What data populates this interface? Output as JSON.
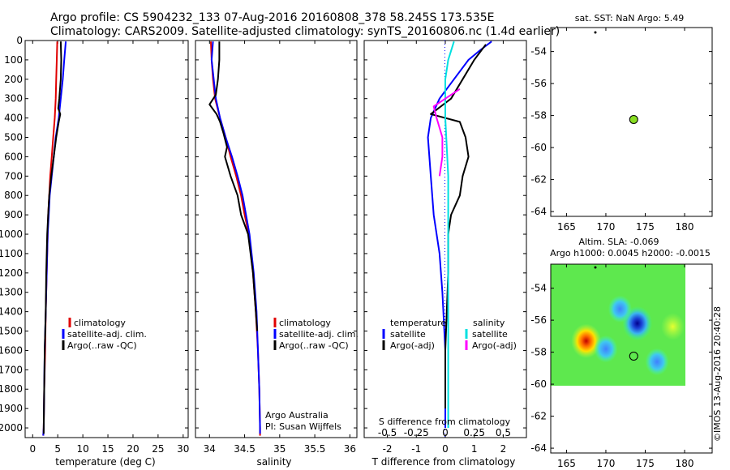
{
  "header": {
    "title_line1": "Argo profile: CS 5904232_133 07-Aug-2016 20160808_378 58.245S 173.535E",
    "title_line2": "Climatology: CARS2009. Satellite-adjusted climatology: synTS_20160806.nc (1.4d earlier)"
  },
  "colors": {
    "climatology": "#e00000",
    "satellite": "#0000ff",
    "argo": "#000000",
    "sat_salinity": "#00e0e0",
    "argo_salinity": "#ff00ff",
    "marker": "#88dd22"
  },
  "legend": {
    "climatology": "climatology",
    "satellite_adj": "satellite-adj. clim.",
    "argo_raw": "Argo(..raw -QC)",
    "temperature": "temperature",
    "salinity": "salinity",
    "satellite": "satellite",
    "argo_adj": "Argo(-adj)"
  },
  "credits": {
    "line1": "Argo Australia",
    "line2": "PI: Susan Wijffels",
    "timestamp": "©IMOS 13-Aug-2016 20:40:28"
  },
  "chart_data": [
    {
      "id": "temperature",
      "type": "line",
      "xlabel": "temperature (deg C)",
      "xlim": [
        -1.5,
        31
      ],
      "xticks": [
        0,
        5,
        10,
        15,
        20,
        25,
        30
      ],
      "ylim": [
        0,
        2050
      ],
      "yticks": [
        0,
        100,
        200,
        300,
        400,
        500,
        600,
        700,
        800,
        900,
        1000,
        1100,
        1200,
        1300,
        1400,
        1500,
        1600,
        1700,
        1800,
        1900,
        2000
      ],
      "series": [
        {
          "name": "climatology",
          "color": "#e00000",
          "points": [
            [
              4.9,
              5
            ],
            [
              4.8,
              100
            ],
            [
              4.7,
              200
            ],
            [
              4.6,
              300
            ],
            [
              4.4,
              400
            ],
            [
              4.1,
              500
            ],
            [
              3.8,
              600
            ],
            [
              3.5,
              700
            ],
            [
              3.3,
              800
            ],
            [
              3.1,
              900
            ],
            [
              3.0,
              1000
            ],
            [
              2.8,
              1200
            ],
            [
              2.6,
              1400
            ],
            [
              2.5,
              1600
            ],
            [
              2.3,
              1800
            ],
            [
              2.2,
              2000
            ],
            [
              2.1,
              2040
            ]
          ]
        },
        {
          "name": "satellite-adj. clim.",
          "color": "#0000ff",
          "points": [
            [
              6.6,
              5
            ],
            [
              6.3,
              100
            ],
            [
              6.0,
              200
            ],
            [
              5.6,
              300
            ],
            [
              5.2,
              400
            ],
            [
              4.6,
              500
            ],
            [
              4.2,
              600
            ],
            [
              3.8,
              700
            ],
            [
              3.4,
              800
            ],
            [
              3.2,
              900
            ],
            [
              3.0,
              1000
            ],
            [
              2.8,
              1200
            ],
            [
              2.6,
              1400
            ],
            [
              2.4,
              1600
            ],
            [
              2.3,
              1800
            ],
            [
              2.2,
              2000
            ],
            [
              2.1,
              2040
            ]
          ]
        },
        {
          "name": "Argo(..raw -QC)",
          "color": "#000000",
          "points": [
            [
              5.6,
              5
            ],
            [
              5.7,
              100
            ],
            [
              5.6,
              200
            ],
            [
              5.3,
              300
            ],
            [
              5.1,
              350
            ],
            [
              5.5,
              380
            ],
            [
              5.2,
              420
            ],
            [
              5.0,
              450
            ],
            [
              4.7,
              500
            ],
            [
              4.2,
              600
            ],
            [
              3.7,
              700
            ],
            [
              3.3,
              800
            ],
            [
              3.1,
              900
            ],
            [
              2.9,
              1000
            ],
            [
              2.7,
              1200
            ],
            [
              2.6,
              1400
            ],
            [
              2.4,
              1600
            ],
            [
              2.3,
              1800
            ],
            [
              2.2,
              2000
            ],
            [
              2.2,
              2030
            ]
          ]
        }
      ],
      "legend": [
        "climatology",
        "satellite-adj. clim.",
        "Argo(..raw -QC)"
      ]
    },
    {
      "id": "salinity",
      "type": "line",
      "xlabel": "salinity",
      "xlim": [
        33.8,
        36.1
      ],
      "xticks": [
        34,
        34.5,
        35,
        35.5,
        36
      ],
      "xticklabels": [
        "34",
        "34.5",
        "35",
        "35.5",
        "36"
      ],
      "ylim": [
        0,
        2050
      ],
      "series": [
        {
          "name": "climatology",
          "color": "#e00000",
          "points": [
            [
              34.02,
              5
            ],
            [
              34.03,
              100
            ],
            [
              34.05,
              200
            ],
            [
              34.08,
              300
            ],
            [
              34.15,
              400
            ],
            [
              34.23,
              500
            ],
            [
              34.3,
              600
            ],
            [
              34.38,
              700
            ],
            [
              34.45,
              800
            ],
            [
              34.5,
              900
            ],
            [
              34.56,
              1000
            ],
            [
              34.62,
              1200
            ],
            [
              34.66,
              1400
            ],
            [
              34.69,
              1600
            ],
            [
              34.71,
              1800
            ],
            [
              34.72,
              2000
            ],
            [
              34.72,
              2040
            ]
          ]
        },
        {
          "name": "satellite-adj. clim.",
          "color": "#0000ff",
          "points": [
            [
              34.05,
              5
            ],
            [
              34.03,
              100
            ],
            [
              34.06,
              200
            ],
            [
              34.09,
              300
            ],
            [
              34.15,
              400
            ],
            [
              34.23,
              500
            ],
            [
              34.32,
              600
            ],
            [
              34.4,
              700
            ],
            [
              34.47,
              800
            ],
            [
              34.52,
              900
            ],
            [
              34.57,
              1000
            ],
            [
              34.63,
              1200
            ],
            [
              34.67,
              1400
            ],
            [
              34.69,
              1600
            ],
            [
              34.71,
              1800
            ],
            [
              34.72,
              2000
            ],
            [
              34.72,
              2030
            ]
          ]
        },
        {
          "name": "Argo(..raw -QC)",
          "color": "#000000",
          "points": [
            [
              34.14,
              5
            ],
            [
              34.14,
              100
            ],
            [
              34.12,
              200
            ],
            [
              34.09,
              280
            ],
            [
              34.0,
              330
            ],
            [
              34.1,
              380
            ],
            [
              34.15,
              420
            ],
            [
              34.2,
              480
            ],
            [
              34.25,
              550
            ],
            [
              34.22,
              600
            ],
            [
              34.3,
              700
            ],
            [
              34.4,
              800
            ],
            [
              34.45,
              900
            ],
            [
              34.55,
              1000
            ],
            [
              34.62,
              1200
            ],
            [
              34.66,
              1400
            ],
            [
              34.68,
              1500
            ]
          ]
        }
      ],
      "legend": [
        "climatology",
        "satellite-adj. clim.",
        "Argo(..raw -QC)"
      ]
    },
    {
      "id": "differences",
      "type": "line",
      "xlabel": "T difference from climatology",
      "xlabel_top": "S difference from climatology",
      "xlim": [
        -2.8,
        2.8
      ],
      "xticks": [
        -2,
        -1,
        0,
        1,
        2
      ],
      "top_ticks": [
        "-0.5",
        "-0.25",
        "0",
        "0.25",
        "0.5"
      ],
      "ylim": [
        0,
        2050
      ],
      "series": [
        {
          "name": "temperature satellite",
          "color": "#0000ff",
          "points": [
            [
              1.6,
              5
            ],
            [
              1.2,
              50
            ],
            [
              0.8,
              100
            ],
            [
              0.3,
              200
            ],
            [
              -0.2,
              300
            ],
            [
              -0.5,
              400
            ],
            [
              -0.6,
              500
            ],
            [
              -0.5,
              700
            ],
            [
              -0.4,
              900
            ],
            [
              -0.2,
              1100
            ],
            [
              -0.1,
              1300
            ],
            [
              0.0,
              1600
            ],
            [
              0.0,
              2000
            ]
          ]
        },
        {
          "name": "temperature Argo(-adj)",
          "color": "#000000",
          "points": [
            [
              1.4,
              20
            ],
            [
              1.0,
              100
            ],
            [
              0.6,
              200
            ],
            [
              0.2,
              300
            ],
            [
              -0.5,
              380
            ],
            [
              0.5,
              420
            ],
            [
              0.7,
              500
            ],
            [
              0.8,
              600
            ],
            [
              0.6,
              700
            ],
            [
              0.5,
              800
            ],
            [
              0.2,
              900
            ],
            [
              0.1,
              1000
            ],
            [
              0.1,
              1200
            ],
            [
              0.0,
              1600
            ],
            [
              0.0,
              1900
            ]
          ]
        },
        {
          "name": "salinity satellite",
          "color": "#00e0e0",
          "points": [
            [
              0.3,
              5
            ],
            [
              0.1,
              100
            ],
            [
              0.0,
              200
            ],
            [
              0.0,
              400
            ],
            [
              0.1,
              700
            ],
            [
              0.1,
              1200
            ],
            [
              0.1,
              1600
            ],
            [
              0.1,
              2000
            ]
          ]
        },
        {
          "name": "salinity Argo(-adj)",
          "color": "#ff00ff",
          "points": [
            [
              0.5,
              250
            ],
            [
              -0.4,
              340
            ],
            [
              -0.3,
              400
            ],
            [
              -0.1,
              500
            ],
            [
              -0.1,
              600
            ],
            [
              -0.2,
              700
            ]
          ]
        }
      ],
      "legend_left": [
        "temperature",
        "satellite",
        "Argo(-adj)"
      ],
      "legend_right": [
        "salinity",
        "satellite",
        "Argo(-adj)"
      ]
    },
    {
      "id": "sst_map",
      "type": "scatter",
      "title": "sat. SST: NaN Argo: 5.49",
      "xlim": [
        163,
        183.5
      ],
      "xticks": [
        165,
        170,
        175,
        180
      ],
      "ylim": [
        -64.3,
        -52.5
      ],
      "yticks": [
        -54,
        -56,
        -58,
        -60,
        -62,
        -64
      ],
      "points": [
        {
          "lon": 173.535,
          "lat": -58.245
        }
      ]
    },
    {
      "id": "sla_map",
      "type": "heatmap",
      "title_line1": "Altim. SLA: -0.069",
      "title_line2": "Argo h1000: 0.0045 h2000: -0.0015",
      "xlim": [
        163,
        183.5
      ],
      "xticks": [
        165,
        170,
        175,
        180
      ],
      "ylim": [
        -64.3,
        -52.5
      ],
      "yticks": [
        -54,
        -56,
        -58,
        -60,
        -62,
        -64
      ],
      "field_lon_range": [
        163,
        180
      ],
      "field_lat_range": [
        -60,
        -52.5
      ],
      "anomalies": [
        {
          "lon": 174,
          "lat": -56.2,
          "kind": "low",
          "strength": 1.0
        },
        {
          "lon": 171.8,
          "lat": -55.3,
          "kind": "low",
          "strength": 0.55
        },
        {
          "lon": 167.5,
          "lat": -57.3,
          "kind": "high",
          "strength": 1.0
        },
        {
          "lon": 170,
          "lat": -57.8,
          "kind": "low",
          "strength": 0.45
        },
        {
          "lon": 176.5,
          "lat": -58.6,
          "kind": "low",
          "strength": 0.4
        },
        {
          "lon": 178.5,
          "lat": -56.4,
          "kind": "high",
          "strength": 0.3
        }
      ],
      "points": [
        {
          "lon": 173.535,
          "lat": -58.245
        }
      ]
    }
  ]
}
